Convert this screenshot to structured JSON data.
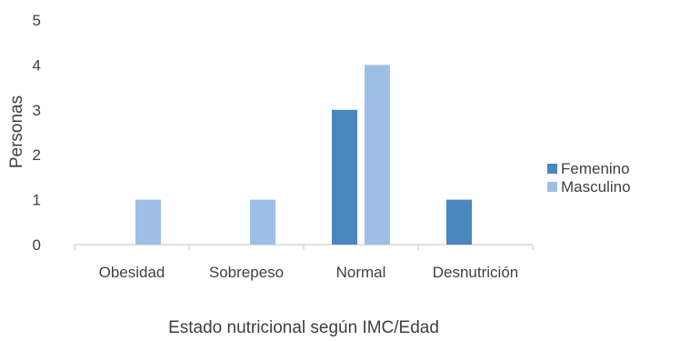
{
  "chart_data": {
    "type": "bar",
    "title": "",
    "xlabel": "Estado nutricional según IMC/Edad",
    "ylabel": "Personas",
    "categories": [
      "Obesidad",
      "Sobrepeso",
      "Normal",
      "Desnutrición"
    ],
    "series": [
      {
        "name": "Femenino",
        "values": [
          0,
          0,
          3,
          1
        ],
        "color": "#4a86c0"
      },
      {
        "name": "Masculino",
        "values": [
          1,
          1,
          4,
          0
        ],
        "color": "#9dbfe4"
      }
    ],
    "ylim": [
      0,
      5
    ],
    "yticks": [
      "0",
      "1",
      "2",
      "3",
      "4",
      "5"
    ],
    "grid": false,
    "legend": "right",
    "axis_color": "#d0d0d0"
  }
}
